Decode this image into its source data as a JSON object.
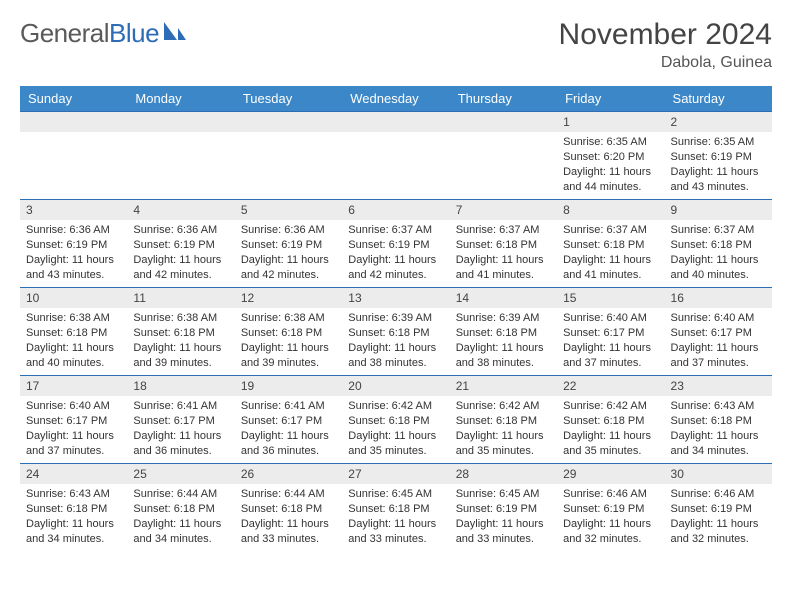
{
  "brand": {
    "part1": "General",
    "part2": "Blue"
  },
  "title": "November 2024",
  "location": "Dabola, Guinea",
  "colors": {
    "header_bg": "#3b87c8",
    "border": "#2e6db5",
    "daynum_bg": "#ececec",
    "text": "#333333"
  },
  "typography": {
    "title_size": 30,
    "location_size": 16,
    "dow_size": 13,
    "day_size": 12,
    "info_size": 11
  },
  "dow": [
    "Sunday",
    "Monday",
    "Tuesday",
    "Wednesday",
    "Thursday",
    "Friday",
    "Saturday"
  ],
  "weeks": [
    [
      null,
      null,
      null,
      null,
      null,
      {
        "n": "1",
        "sr": "6:35 AM",
        "ss": "6:20 PM",
        "dl": "11 hours and 44 minutes."
      },
      {
        "n": "2",
        "sr": "6:35 AM",
        "ss": "6:19 PM",
        "dl": "11 hours and 43 minutes."
      }
    ],
    [
      {
        "n": "3",
        "sr": "6:36 AM",
        "ss": "6:19 PM",
        "dl": "11 hours and 43 minutes."
      },
      {
        "n": "4",
        "sr": "6:36 AM",
        "ss": "6:19 PM",
        "dl": "11 hours and 42 minutes."
      },
      {
        "n": "5",
        "sr": "6:36 AM",
        "ss": "6:19 PM",
        "dl": "11 hours and 42 minutes."
      },
      {
        "n": "6",
        "sr": "6:37 AM",
        "ss": "6:19 PM",
        "dl": "11 hours and 42 minutes."
      },
      {
        "n": "7",
        "sr": "6:37 AM",
        "ss": "6:18 PM",
        "dl": "11 hours and 41 minutes."
      },
      {
        "n": "8",
        "sr": "6:37 AM",
        "ss": "6:18 PM",
        "dl": "11 hours and 41 minutes."
      },
      {
        "n": "9",
        "sr": "6:37 AM",
        "ss": "6:18 PM",
        "dl": "11 hours and 40 minutes."
      }
    ],
    [
      {
        "n": "10",
        "sr": "6:38 AM",
        "ss": "6:18 PM",
        "dl": "11 hours and 40 minutes."
      },
      {
        "n": "11",
        "sr": "6:38 AM",
        "ss": "6:18 PM",
        "dl": "11 hours and 39 minutes."
      },
      {
        "n": "12",
        "sr": "6:38 AM",
        "ss": "6:18 PM",
        "dl": "11 hours and 39 minutes."
      },
      {
        "n": "13",
        "sr": "6:39 AM",
        "ss": "6:18 PM",
        "dl": "11 hours and 38 minutes."
      },
      {
        "n": "14",
        "sr": "6:39 AM",
        "ss": "6:18 PM",
        "dl": "11 hours and 38 minutes."
      },
      {
        "n": "15",
        "sr": "6:40 AM",
        "ss": "6:17 PM",
        "dl": "11 hours and 37 minutes."
      },
      {
        "n": "16",
        "sr": "6:40 AM",
        "ss": "6:17 PM",
        "dl": "11 hours and 37 minutes."
      }
    ],
    [
      {
        "n": "17",
        "sr": "6:40 AM",
        "ss": "6:17 PM",
        "dl": "11 hours and 37 minutes."
      },
      {
        "n": "18",
        "sr": "6:41 AM",
        "ss": "6:17 PM",
        "dl": "11 hours and 36 minutes."
      },
      {
        "n": "19",
        "sr": "6:41 AM",
        "ss": "6:17 PM",
        "dl": "11 hours and 36 minutes."
      },
      {
        "n": "20",
        "sr": "6:42 AM",
        "ss": "6:18 PM",
        "dl": "11 hours and 35 minutes."
      },
      {
        "n": "21",
        "sr": "6:42 AM",
        "ss": "6:18 PM",
        "dl": "11 hours and 35 minutes."
      },
      {
        "n": "22",
        "sr": "6:42 AM",
        "ss": "6:18 PM",
        "dl": "11 hours and 35 minutes."
      },
      {
        "n": "23",
        "sr": "6:43 AM",
        "ss": "6:18 PM",
        "dl": "11 hours and 34 minutes."
      }
    ],
    [
      {
        "n": "24",
        "sr": "6:43 AM",
        "ss": "6:18 PM",
        "dl": "11 hours and 34 minutes."
      },
      {
        "n": "25",
        "sr": "6:44 AM",
        "ss": "6:18 PM",
        "dl": "11 hours and 34 minutes."
      },
      {
        "n": "26",
        "sr": "6:44 AM",
        "ss": "6:18 PM",
        "dl": "11 hours and 33 minutes."
      },
      {
        "n": "27",
        "sr": "6:45 AM",
        "ss": "6:18 PM",
        "dl": "11 hours and 33 minutes."
      },
      {
        "n": "28",
        "sr": "6:45 AM",
        "ss": "6:19 PM",
        "dl": "11 hours and 33 minutes."
      },
      {
        "n": "29",
        "sr": "6:46 AM",
        "ss": "6:19 PM",
        "dl": "11 hours and 32 minutes."
      },
      {
        "n": "30",
        "sr": "6:46 AM",
        "ss": "6:19 PM",
        "dl": "11 hours and 32 minutes."
      }
    ]
  ],
  "labels": {
    "sunrise": "Sunrise: ",
    "sunset": "Sunset: ",
    "daylight": "Daylight: "
  }
}
